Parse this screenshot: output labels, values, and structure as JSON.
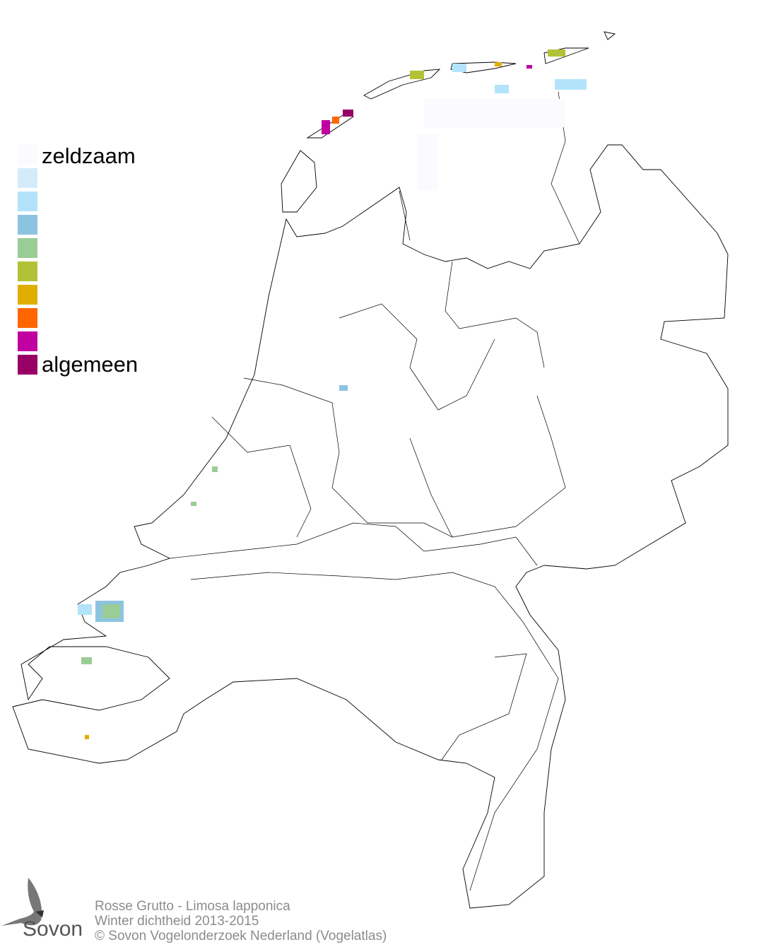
{
  "legend": {
    "top_label": "zeldzaam",
    "bottom_label": "algemeen",
    "colors": [
      "#fbfbff",
      "#d4ecfa",
      "#b3e3fa",
      "#8cc4e0",
      "#9acc96",
      "#b2c236",
      "#e0ae00",
      "#ff6600",
      "#c000a0",
      "#990066"
    ]
  },
  "footer": {
    "species": "Rosse Grutto - Limosa lapponica",
    "subtitle": "Winter dichtheid 2013-2015",
    "copyright": "© Sovon Vogelonderzoek Nederland (Vogelatlas)"
  },
  "logo": {
    "text": "Sovon",
    "icon": "swallow-icon"
  }
}
